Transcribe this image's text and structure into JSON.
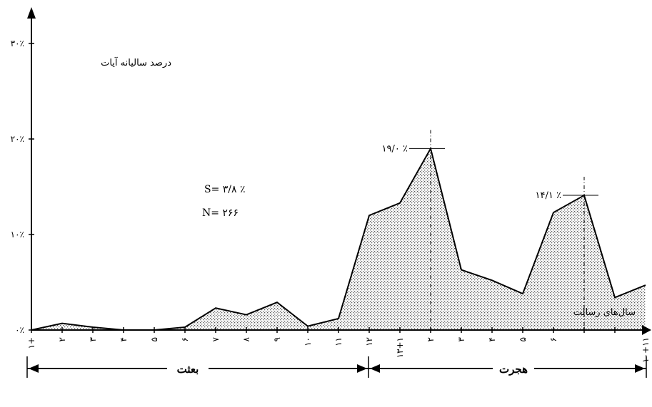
{
  "chart_data": {
    "type": "area",
    "ylabel": "درصد سالیانه آیات",
    "xlabel": "سال‌های رسالت",
    "ylim": [
      0,
      30
    ],
    "yticks": [
      {
        "value": 0,
        "label": "۰٪"
      },
      {
        "value": 10,
        "label": "۱۰٪"
      },
      {
        "value": 20,
        "label": "۲۰٪"
      },
      {
        "value": 30,
        "label": "۳۰٪"
      }
    ],
    "x_tick_labels": [
      "۱+",
      "۲",
      "۳",
      "۴",
      "۵",
      "۶",
      "۷",
      "۸",
      "۹",
      "۱۰",
      "۱۱",
      "۱۲",
      "۱۳+۱",
      "۲",
      "۳",
      "۴",
      "۵",
      "۶",
      "",
      "",
      "۱۰+۱۱"
    ],
    "series": [
      {
        "values": [
          0,
          0.7,
          0.3,
          0,
          0,
          0.3,
          2.3,
          1.6,
          2.9,
          0.4,
          1.2,
          12.0,
          13.3,
          19.0,
          6.3,
          5.2,
          3.8,
          12.3,
          14.1,
          3.4,
          4.7,
          null
        ]
      }
    ],
    "annotations": [
      {
        "text": "۱۹/۰ ٪",
        "x_index": 13,
        "value": 19.0
      },
      {
        "text": "۱۴/۱ ٪",
        "x_index": 18,
        "value": 14.1
      }
    ],
    "stats": {
      "s": "S= ۳/۸ ٪",
      "n": "N= ۲۶۶"
    },
    "periods": [
      {
        "label": "بعثت"
      },
      {
        "label": "هجرت"
      }
    ],
    "grid": false,
    "legend": "none"
  }
}
